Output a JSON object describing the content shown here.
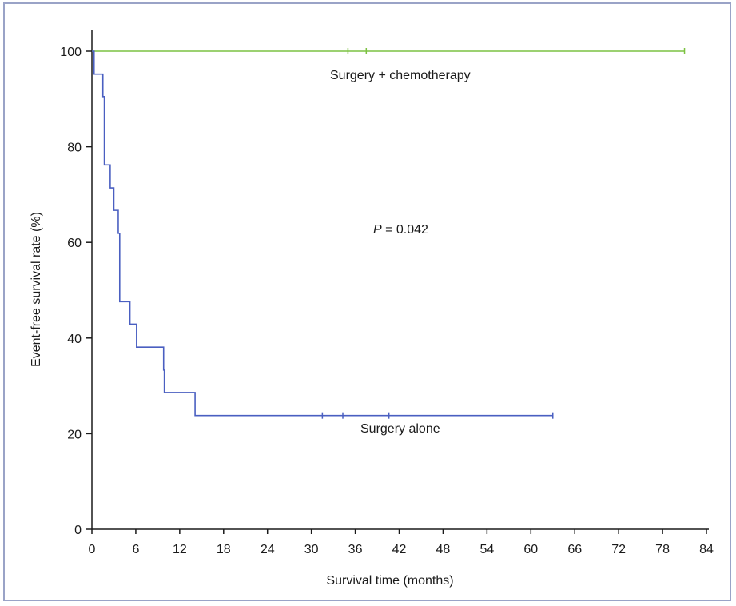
{
  "chart_data": {
    "type": "line",
    "title": "",
    "xlabel": "Survival time (months)",
    "ylabel": "Event-free survival rate (%)",
    "xlim": [
      0,
      84
    ],
    "ylim": [
      0,
      100
    ],
    "x_ticks": [
      0,
      6,
      12,
      18,
      24,
      30,
      36,
      42,
      48,
      54,
      60,
      66,
      72,
      78,
      84
    ],
    "y_ticks": [
      0,
      20,
      40,
      60,
      80,
      100
    ],
    "grid": false,
    "series": [
      {
        "name": "Surgery + chemotherapy",
        "color": "#7cc242",
        "step": true,
        "points": [
          [
            0,
            100
          ],
          [
            81,
            100
          ]
        ],
        "censored": [
          [
            35,
            100
          ],
          [
            37.5,
            100
          ],
          [
            81,
            100
          ]
        ]
      },
      {
        "name": "Surgery alone",
        "color": "#4a5fc1",
        "step": true,
        "points": [
          [
            0,
            100
          ],
          [
            0.3,
            95.2
          ],
          [
            1.5,
            90.5
          ],
          [
            1.7,
            76.2
          ],
          [
            2.5,
            71.4
          ],
          [
            3,
            66.7
          ],
          [
            3.6,
            61.9
          ],
          [
            3.8,
            47.6
          ],
          [
            5.2,
            42.9
          ],
          [
            6.1,
            38.1
          ],
          [
            9.8,
            33.3
          ],
          [
            9.9,
            28.6
          ],
          [
            14.1,
            23.8
          ],
          [
            63,
            23.8
          ]
        ],
        "censored": [
          [
            31.5,
            23.8
          ],
          [
            34.3,
            23.8
          ],
          [
            40.6,
            23.8
          ],
          [
            63,
            23.8
          ]
        ]
      }
    ],
    "annotations": {
      "p_label": "P",
      "p_value": " = 0.042",
      "chemo_label": "Surgery + chemotherapy",
      "alone_label": "Surgery alone"
    }
  }
}
